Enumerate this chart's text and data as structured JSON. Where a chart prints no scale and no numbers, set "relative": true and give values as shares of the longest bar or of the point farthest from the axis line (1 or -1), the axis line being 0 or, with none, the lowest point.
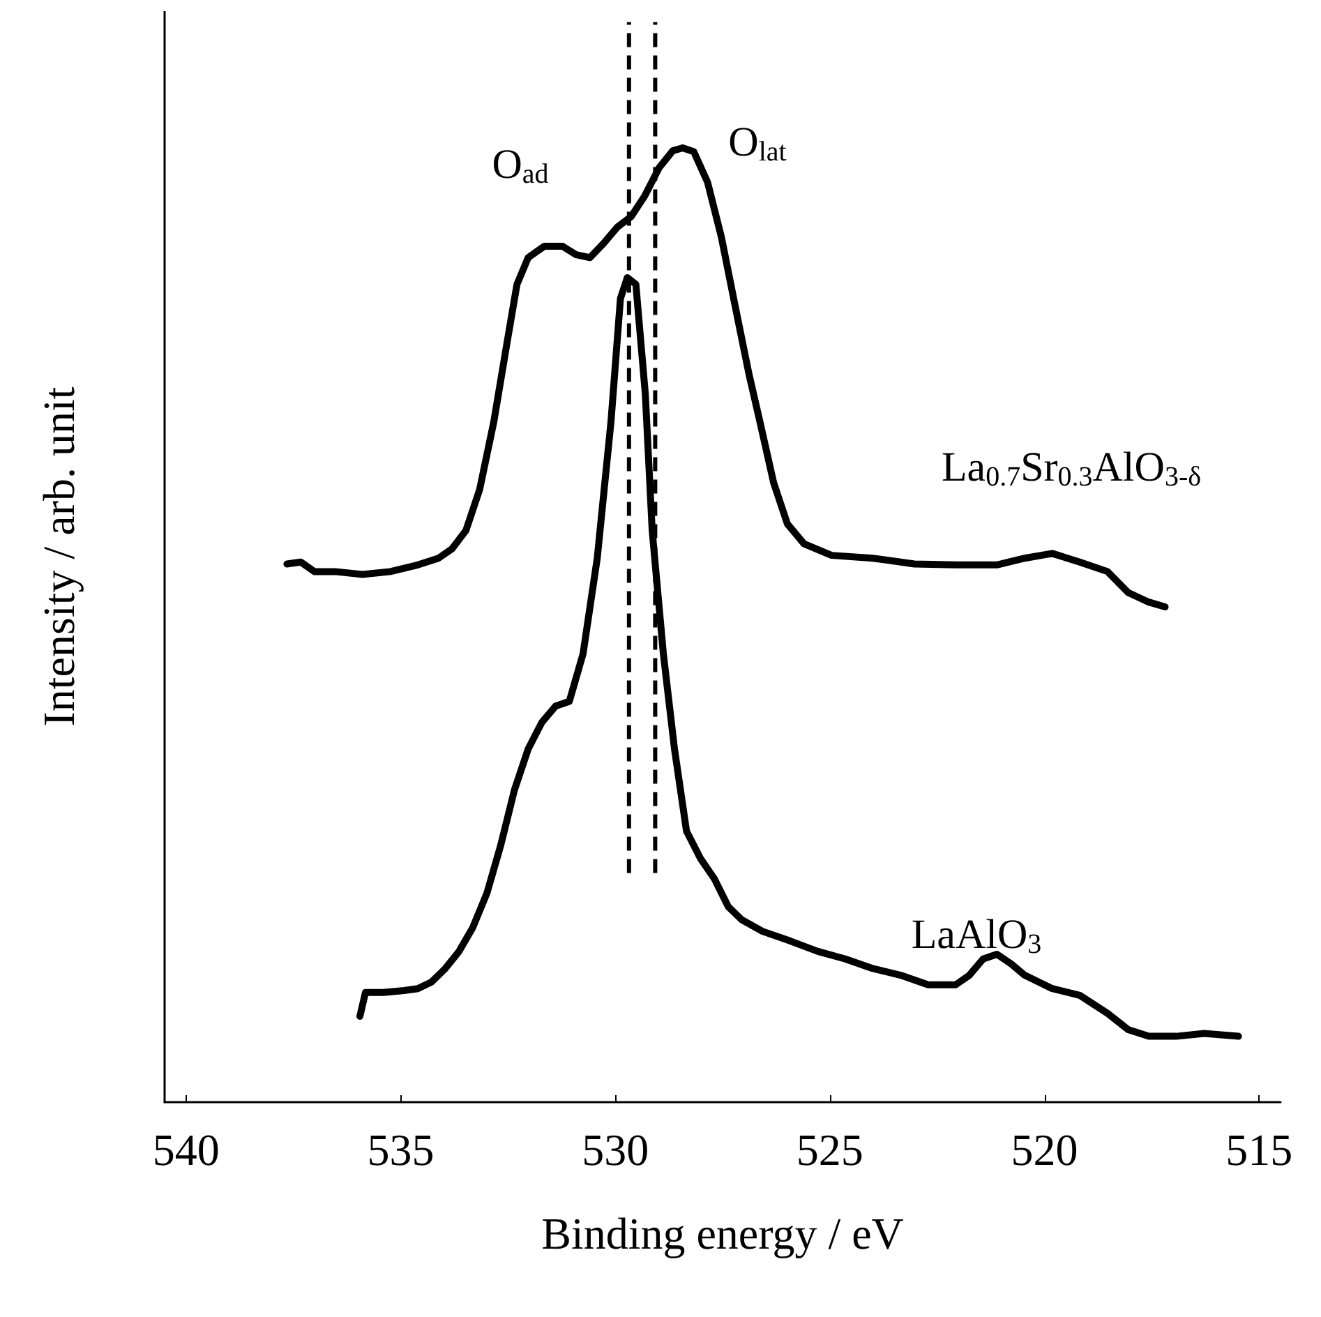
{
  "chart_data": {
    "type": "line",
    "xlabel": "Binding energy / eV",
    "ylabel": "Intensity / arb. unit",
    "relative": true,
    "xlim": [
      540.5,
      514.5
    ],
    "xticks": [
      540,
      535,
      530,
      525,
      520,
      515
    ],
    "grid": false,
    "legend": false,
    "marker": "none",
    "line_style": "solid",
    "series": [
      {
        "name": "La$_{0.7}$Sr$_{0.3}$AlO$_{3-δ}$",
        "color": "#000000",
        "x": [
          537.65,
          537.33,
          537.01,
          536.53,
          535.89,
          535.24,
          534.6,
          534.12,
          533.8,
          533.48,
          533.16,
          532.83,
          532.51,
          532.29,
          532.03,
          531.65,
          531.23,
          530.91,
          530.59,
          530.27,
          529.95,
          529.63,
          529.31,
          528.98,
          528.66,
          528.43,
          528.17,
          527.85,
          527.53,
          527.21,
          526.89,
          526.63,
          526.31,
          525.99,
          525.6,
          524.96,
          524.0,
          523.03,
          522.07,
          521.11,
          520.46,
          519.82,
          519.18,
          518.53,
          518.05,
          517.57,
          517.19
        ],
        "values": [
          0.564,
          0.566,
          0.556,
          0.556,
          0.553,
          0.556,
          0.563,
          0.57,
          0.58,
          0.599,
          0.642,
          0.713,
          0.799,
          0.857,
          0.885,
          0.897,
          0.897,
          0.888,
          0.885,
          0.9,
          0.917,
          0.928,
          0.95,
          0.979,
          0.997,
          1,
          0.996,
          0.964,
          0.907,
          0.835,
          0.764,
          0.713,
          0.649,
          0.606,
          0.585,
          0.573,
          0.57,
          0.564,
          0.563,
          0.563,
          0.57,
          0.575,
          0.566,
          0.556,
          0.534,
          0.524,
          0.519
        ]
      },
      {
        "name": "LaAlO$_{3}$",
        "color": "#000000",
        "x": [
          535.95,
          535.82,
          535.4,
          534.92,
          534.6,
          534.28,
          533.96,
          533.64,
          533.32,
          532.99,
          532.67,
          532.35,
          532.03,
          531.71,
          531.39,
          531.07,
          530.75,
          530.42,
          530.1,
          529.88,
          529.72,
          529.52,
          529.3,
          529.14,
          528.88,
          528.62,
          528.34,
          528.01,
          527.69,
          527.37,
          527.05,
          526.57,
          525.93,
          525.28,
          524.64,
          524.0,
          523.35,
          522.71,
          522.07,
          521.75,
          521.43,
          521.11,
          520.78,
          520.46,
          519.82,
          519.18,
          518.53,
          518.05,
          517.57,
          516.93,
          516.28,
          515.48
        ],
        "values": [
          0.09,
          0.115,
          0.115,
          0.117,
          0.119,
          0.126,
          0.14,
          0.158,
          0.183,
          0.219,
          0.269,
          0.327,
          0.37,
          0.398,
          0.415,
          0.42,
          0.47,
          0.57,
          0.713,
          0.842,
          0.864,
          0.857,
          0.742,
          0.599,
          0.47,
          0.37,
          0.284,
          0.255,
          0.234,
          0.205,
          0.191,
          0.179,
          0.169,
          0.158,
          0.15,
          0.14,
          0.133,
          0.123,
          0.123,
          0.133,
          0.15,
          0.155,
          0.145,
          0.133,
          0.119,
          0.112,
          0.093,
          0.076,
          0.069,
          0.069,
          0.072,
          0.069
        ]
      }
    ],
    "ref_lines": [
      {
        "axis": "x",
        "value": 529.68,
        "color": "#000000",
        "line_style": "dashed"
      },
      {
        "axis": "x",
        "value": 529.07,
        "color": "#000000",
        "line_style": "dashed"
      }
    ],
    "annotations": [
      "O$_{ad}$",
      "O$_{lat}$"
    ]
  }
}
